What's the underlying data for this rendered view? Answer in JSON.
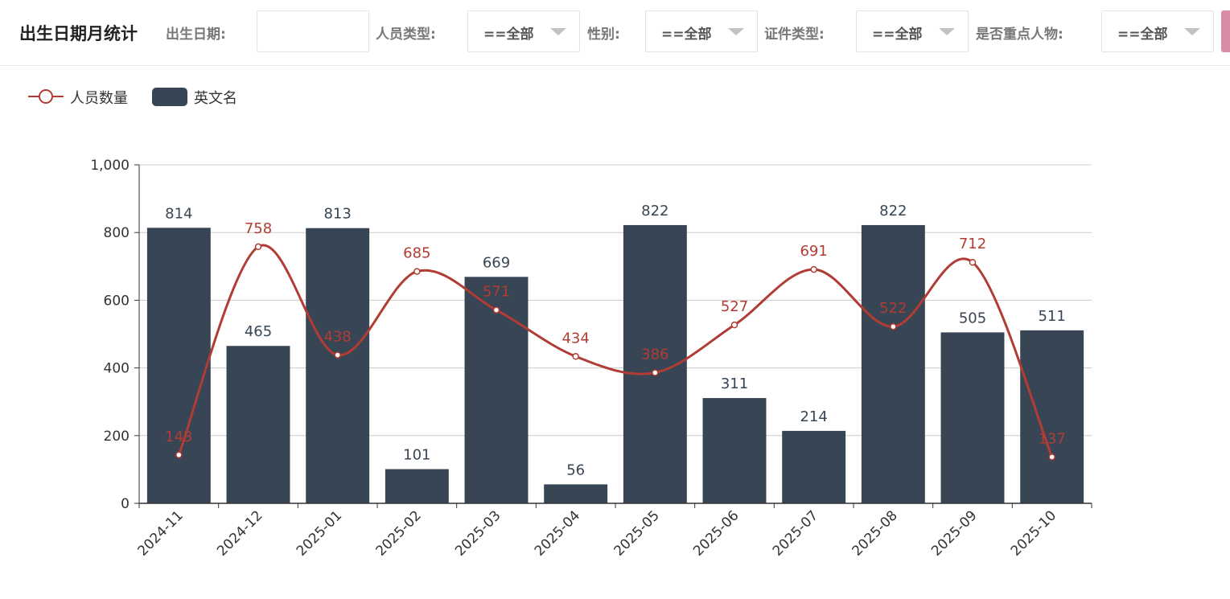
{
  "header": {
    "title": "出生日期月统计",
    "filters": [
      {
        "label": "出生日期:",
        "value": ""
      },
      {
        "label": "人员类型:",
        "value": "==全部"
      },
      {
        "label": "性别:",
        "value": "==全部"
      },
      {
        "label": "证件类型:",
        "value": "==全部"
      },
      {
        "label": "是否重点人物:",
        "value": "==全部"
      }
    ]
  },
  "colors": {
    "bar": "#374555",
    "line": "#b13c34",
    "grid": "#cccccc"
  },
  "chart_data": {
    "type": "bar",
    "categories": [
      "2024-11",
      "2024-12",
      "2025-01",
      "2025-02",
      "2025-03",
      "2025-04",
      "2025-05",
      "2025-06",
      "2025-07",
      "2025-08",
      "2025-09",
      "2025-10"
    ],
    "series": [
      {
        "name": "人员数量",
        "type": "line",
        "smooth": true,
        "values": [
          143,
          758,
          438,
          685,
          571,
          434,
          386,
          527,
          691,
          522,
          712,
          137
        ]
      },
      {
        "name": "英文名",
        "type": "bar",
        "values": [
          814,
          465,
          813,
          101,
          669,
          56,
          822,
          311,
          214,
          822,
          505,
          511
        ]
      }
    ],
    "ylim": [
      0,
      1000
    ],
    "yticks": [
      "0",
      "200",
      "400",
      "600",
      "800",
      "1,000"
    ],
    "grid": true,
    "legend": "top-left"
  }
}
